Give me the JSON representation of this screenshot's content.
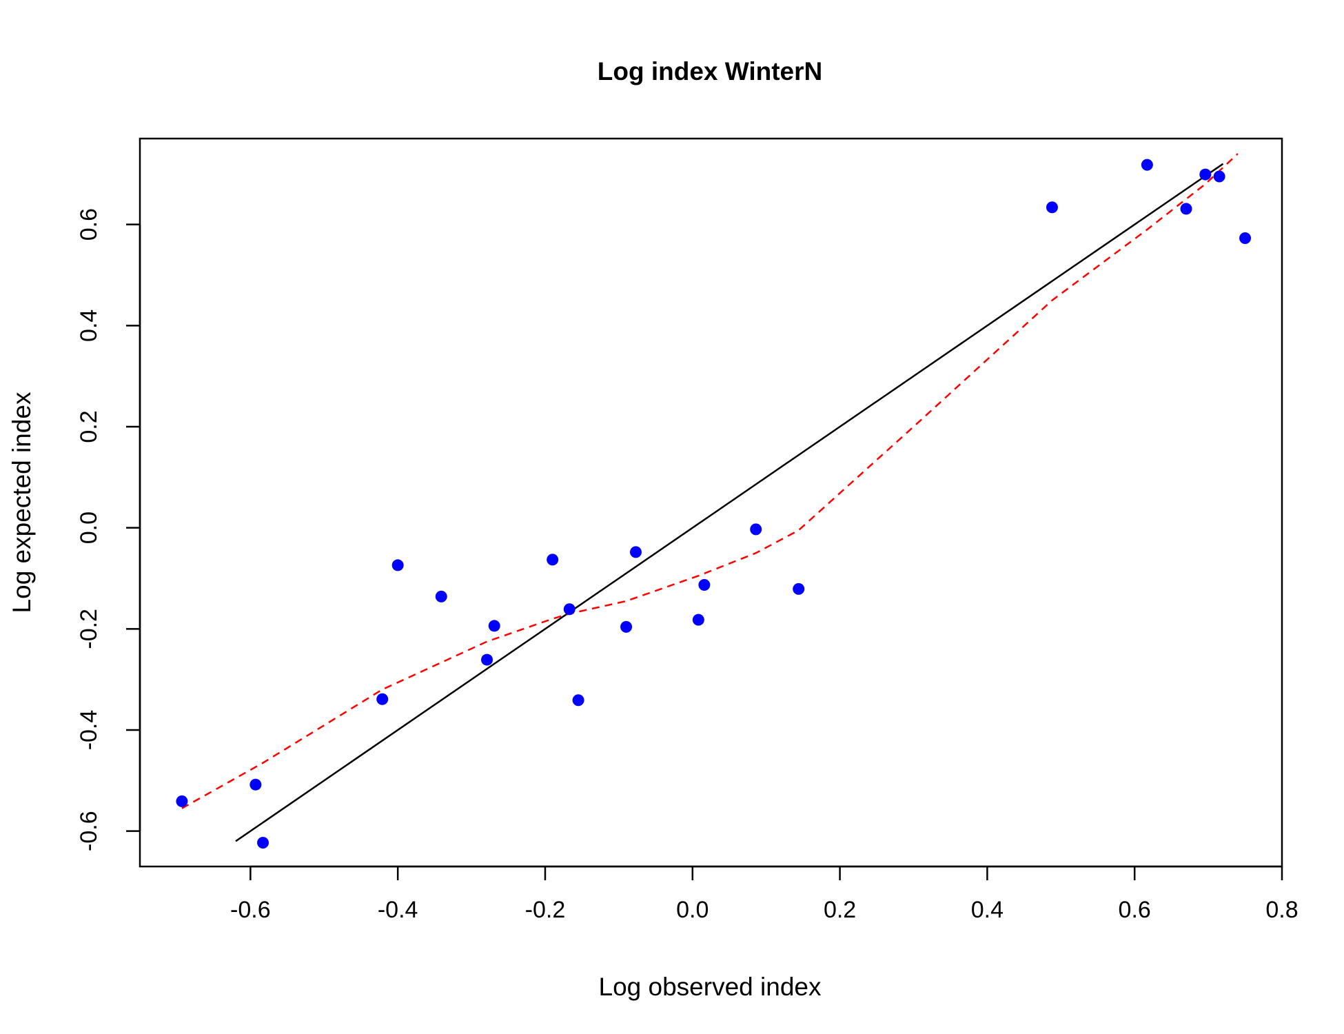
{
  "chart_data": {
    "type": "scatter",
    "title": "Log index WinterN",
    "xlabel": "Log observed index",
    "ylabel": "Log expected index",
    "xlim": [
      -0.75,
      0.8
    ],
    "ylim": [
      -0.67,
      0.77
    ],
    "x_ticks": [
      -0.6,
      -0.4,
      -0.2,
      0.0,
      0.2,
      0.4,
      0.6,
      0.8
    ],
    "x_tick_labels": [
      "-0.6",
      "-0.4",
      "-0.2",
      "0.0",
      "0.2",
      "0.4",
      "0.6",
      "0.8"
    ],
    "y_ticks": [
      -0.6,
      -0.4,
      -0.2,
      0.0,
      0.2,
      0.4,
      0.6
    ],
    "y_tick_labels": [
      "-0.6",
      "-0.4",
      "-0.2",
      "0.0",
      "0.2",
      "0.4",
      "0.6"
    ],
    "grid": false,
    "colors": {
      "points": "#0000ff",
      "reference_line": "#000000",
      "smoother": "#ff0000"
    },
    "points": {
      "x": [
        -0.693,
        -0.593,
        -0.583,
        -0.421,
        -0.4,
        -0.341,
        -0.279,
        -0.269,
        -0.19,
        -0.167,
        -0.155,
        -0.09,
        -0.077,
        0.008,
        0.016,
        0.086,
        0.144,
        0.488,
        0.617,
        0.67,
        0.696,
        0.715,
        0.75
      ],
      "y": [
        -0.541,
        -0.508,
        -0.623,
        -0.339,
        -0.074,
        -0.136,
        -0.261,
        -0.194,
        -0.063,
        -0.161,
        -0.341,
        -0.196,
        -0.048,
        -0.182,
        -0.113,
        -0.003,
        -0.121,
        0.634,
        0.718,
        0.631,
        0.699,
        0.695,
        0.573
      ]
    },
    "reference_line": {
      "x": [
        -0.62,
        0.72
      ],
      "y": [
        -0.62,
        0.72
      ]
    },
    "smoother": {
      "x": [
        -0.693,
        -0.583,
        -0.421,
        -0.279,
        -0.19,
        -0.167,
        -0.09,
        0.008,
        0.086,
        0.144,
        0.3,
        0.488,
        0.617,
        0.696,
        0.74
      ],
      "y": [
        -0.555,
        -0.465,
        -0.32,
        -0.225,
        -0.18,
        -0.17,
        -0.145,
        -0.095,
        -0.05,
        -0.005,
        0.2,
        0.45,
        0.59,
        0.68,
        0.74
      ]
    }
  }
}
